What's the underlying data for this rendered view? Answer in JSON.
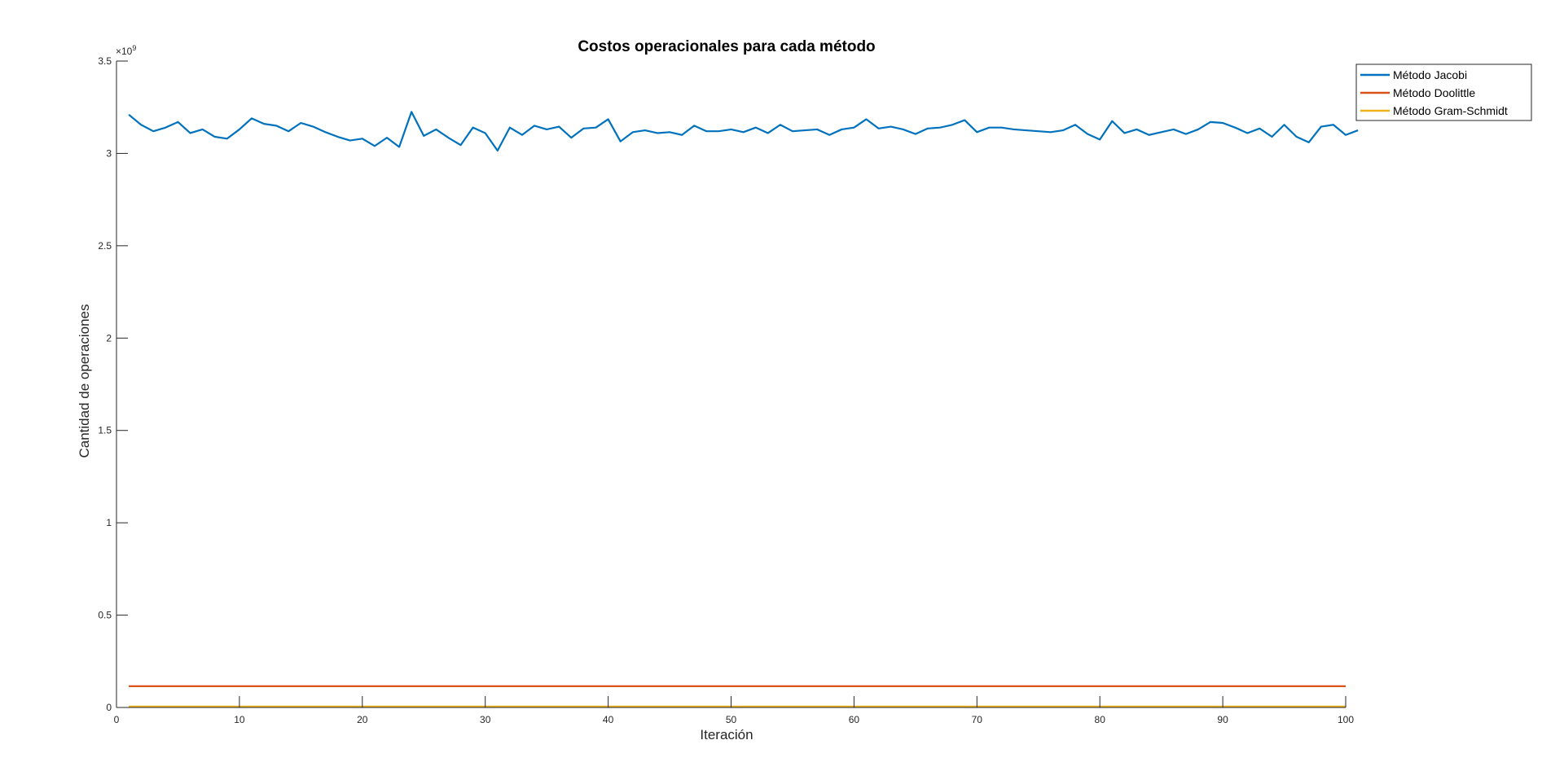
{
  "chart_data": {
    "type": "line",
    "title": "Costos operacionales para cada método",
    "xlabel": "Iteración",
    "ylabel": "Cantidad de operaciones",
    "y_exponent_label": "×10",
    "y_exponent_power": "9",
    "xlim": [
      0,
      100
    ],
    "ylim": [
      0,
      3.5
    ],
    "y_scale_factor": 1000000000,
    "xticks": [
      0,
      10,
      20,
      30,
      40,
      50,
      60,
      70,
      80,
      90,
      100
    ],
    "xtick_labels": [
      "0",
      "10",
      "20",
      "30",
      "40",
      "50",
      "60",
      "70",
      "80",
      "90",
      "100"
    ],
    "yticks": [
      0,
      0.5,
      1,
      1.5,
      2,
      2.5,
      3,
      3.5
    ],
    "ytick_labels": [
      "0",
      "0.5",
      "1",
      "1.5",
      "2",
      "2.5",
      "3",
      "3.5"
    ],
    "grid": false,
    "legend_position": "top-right outside",
    "series": [
      {
        "name": "Método Jacobi",
        "color": "#0072BD",
        "x_start": 1,
        "x_step": 1,
        "values": [
          3.21,
          3.155,
          3.12,
          3.14,
          3.17,
          3.11,
          3.13,
          3.09,
          3.08,
          3.13,
          3.19,
          3.16,
          3.15,
          3.12,
          3.165,
          3.145,
          3.115,
          3.09,
          3.07,
          3.08,
          3.04,
          3.085,
          3.035,
          3.225,
          3.095,
          3.13,
          3.085,
          3.045,
          3.14,
          3.11,
          3.015,
          3.14,
          3.1,
          3.15,
          3.13,
          3.145,
          3.085,
          3.135,
          3.14,
          3.185,
          3.065,
          3.115,
          3.125,
          3.11,
          3.115,
          3.1,
          3.15,
          3.12,
          3.12,
          3.13,
          3.115,
          3.14,
          3.11,
          3.155,
          3.12,
          3.125,
          3.13,
          3.1,
          3.13,
          3.14,
          3.185,
          3.135,
          3.145,
          3.13,
          3.105,
          3.135,
          3.14,
          3.155,
          3.18,
          3.115,
          3.14,
          3.14,
          3.13,
          3.125,
          3.12,
          3.115,
          3.125,
          3.155,
          3.105,
          3.075,
          3.175,
          3.11,
          3.13,
          3.1,
          3.115,
          3.13,
          3.105,
          3.13,
          3.17,
          3.165,
          3.14,
          3.11,
          3.135,
          3.09,
          3.155,
          3.09,
          3.06,
          3.145,
          3.155,
          3.1,
          3.125
        ]
      },
      {
        "name": "Método Doolittle",
        "color": "#D95319",
        "x_start": 1,
        "x_step": 1,
        "values": [
          0.115,
          0.115,
          0.115,
          0.115,
          0.115,
          0.115,
          0.115,
          0.115,
          0.115,
          0.115,
          0.115,
          0.115,
          0.115,
          0.115,
          0.115,
          0.115,
          0.115,
          0.115,
          0.115,
          0.115,
          0.115,
          0.115,
          0.115,
          0.115,
          0.115,
          0.115,
          0.115,
          0.115,
          0.115,
          0.115,
          0.115,
          0.115,
          0.115,
          0.115,
          0.115,
          0.115,
          0.115,
          0.115,
          0.115,
          0.115,
          0.115,
          0.115,
          0.115,
          0.115,
          0.115,
          0.115,
          0.115,
          0.115,
          0.115,
          0.115,
          0.115,
          0.115,
          0.115,
          0.115,
          0.115,
          0.115,
          0.115,
          0.115,
          0.115,
          0.115,
          0.115,
          0.115,
          0.115,
          0.115,
          0.115,
          0.115,
          0.115,
          0.115,
          0.115,
          0.115,
          0.115,
          0.115,
          0.115,
          0.115,
          0.115,
          0.115,
          0.115,
          0.115,
          0.115,
          0.115,
          0.115,
          0.115,
          0.115,
          0.115,
          0.115,
          0.115,
          0.115,
          0.115,
          0.115,
          0.115,
          0.115,
          0.115,
          0.115,
          0.115,
          0.115,
          0.115,
          0.115,
          0.115,
          0.115,
          0.115
        ]
      },
      {
        "name": "Método Gram-Schmidt",
        "color": "#EDB120",
        "x_start": 1,
        "x_step": 1,
        "values": [
          0.005,
          0.005,
          0.005,
          0.005,
          0.005,
          0.005,
          0.005,
          0.005,
          0.005,
          0.005,
          0.005,
          0.005,
          0.005,
          0.005,
          0.005,
          0.005,
          0.005,
          0.005,
          0.005,
          0.005,
          0.005,
          0.005,
          0.005,
          0.005,
          0.005,
          0.005,
          0.005,
          0.005,
          0.005,
          0.005,
          0.005,
          0.005,
          0.005,
          0.005,
          0.005,
          0.005,
          0.005,
          0.005,
          0.005,
          0.005,
          0.005,
          0.005,
          0.005,
          0.005,
          0.005,
          0.005,
          0.005,
          0.005,
          0.005,
          0.005,
          0.005,
          0.005,
          0.005,
          0.005,
          0.005,
          0.005,
          0.005,
          0.005,
          0.005,
          0.005,
          0.005,
          0.005,
          0.005,
          0.005,
          0.005,
          0.005,
          0.005,
          0.005,
          0.005,
          0.005,
          0.005,
          0.005,
          0.005,
          0.005,
          0.005,
          0.005,
          0.005,
          0.005,
          0.005,
          0.005,
          0.005,
          0.005,
          0.005,
          0.005,
          0.005,
          0.005,
          0.005,
          0.005,
          0.005,
          0.005,
          0.005,
          0.005,
          0.005,
          0.005,
          0.005,
          0.005,
          0.005,
          0.005,
          0.005,
          0.005
        ]
      }
    ]
  }
}
